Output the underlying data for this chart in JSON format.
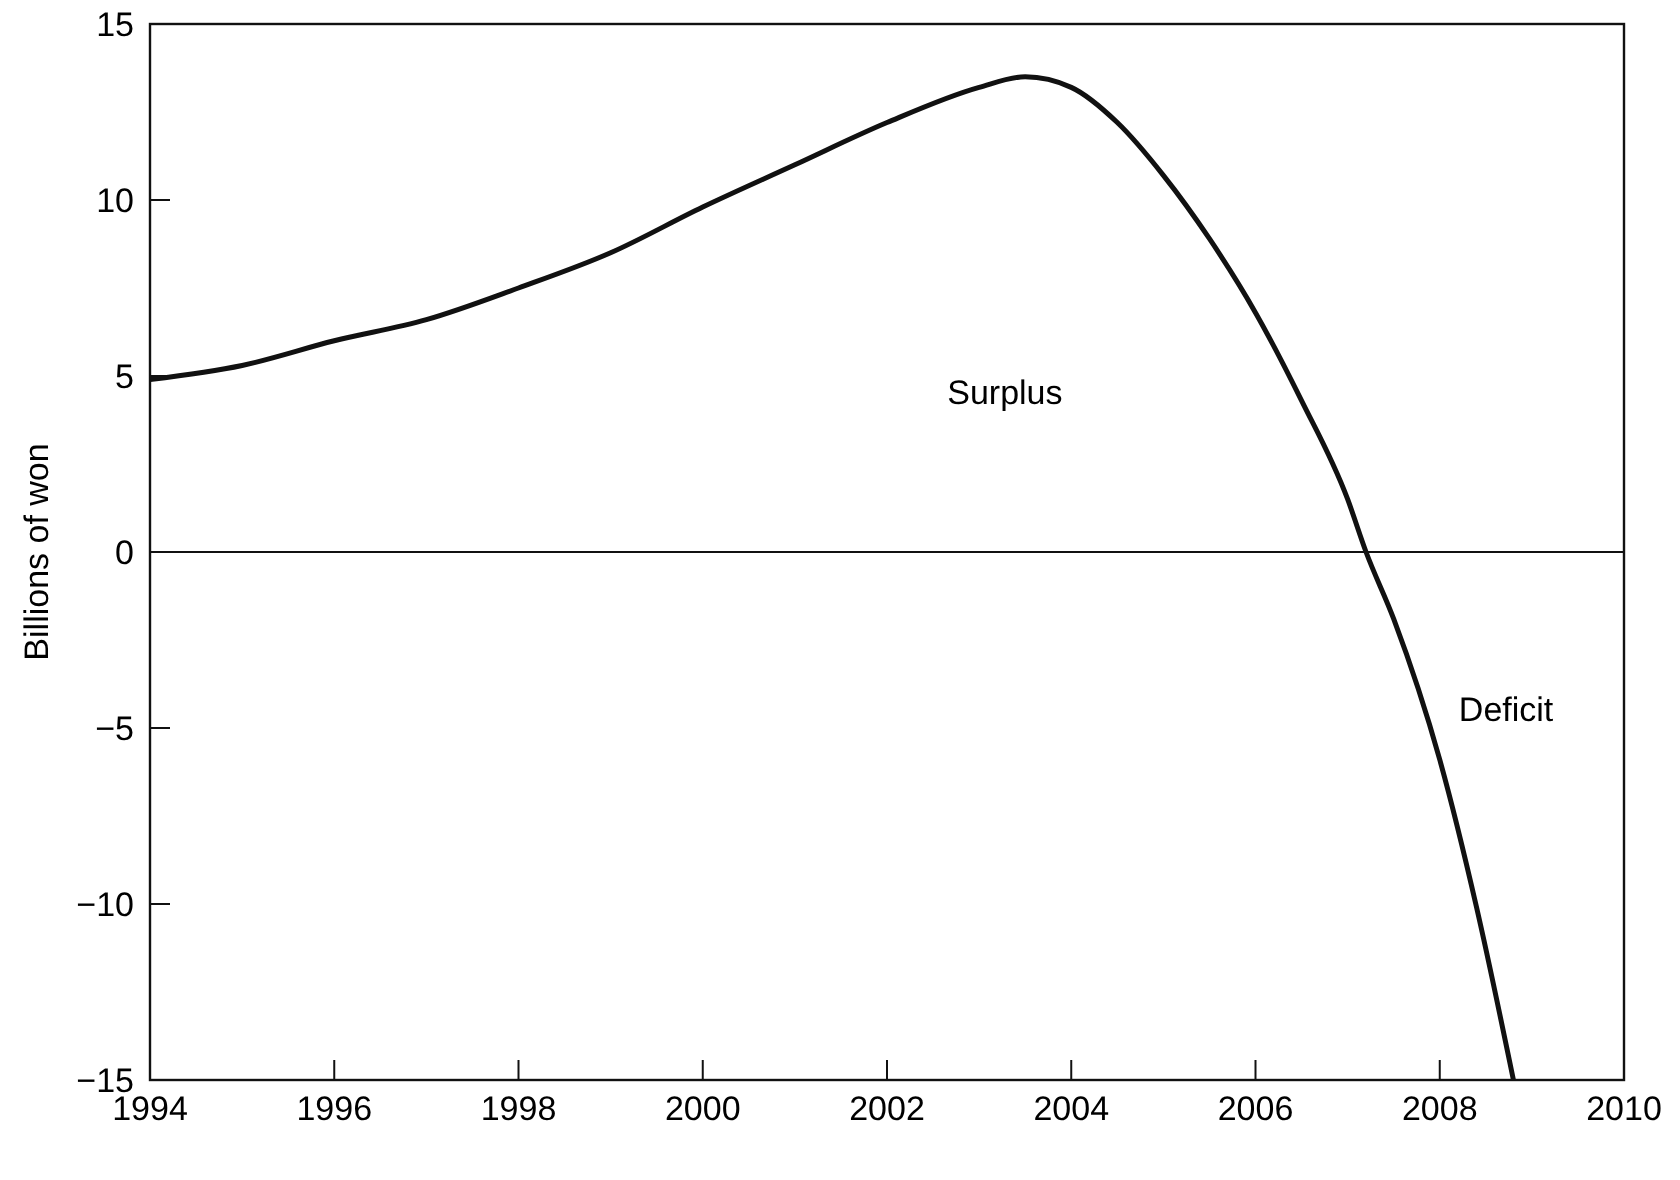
{
  "chart_data": {
    "type": "line",
    "ylabel": "Billions of won",
    "x": [
      1994,
      1995,
      1996,
      1997,
      1998,
      1999,
      2000,
      2001,
      2002,
      2003,
      2003.5,
      2004,
      2004.5,
      2005,
      2005.5,
      2006,
      2006.5,
      2007,
      2007.2,
      2007.5,
      2008,
      2008.4,
      2008.8
    ],
    "series": [
      {
        "color": "#111111",
        "values": [
          4.9,
          5.3,
          6.0,
          6.6,
          7.5,
          8.5,
          9.8,
          11.0,
          12.2,
          13.2,
          13.5,
          13.2,
          12.2,
          10.7,
          8.9,
          6.8,
          4.3,
          1.5,
          0,
          -1.9,
          -5.9,
          -10.1,
          -15
        ]
      }
    ],
    "xlim": [
      1994,
      2010
    ],
    "xticks": [
      1994,
      1996,
      1998,
      2000,
      2002,
      2004,
      2006,
      2008,
      2010
    ],
    "ylim": [
      -15,
      15
    ],
    "yticks": [
      {
        "value": -15,
        "label": "−15"
      },
      {
        "value": -10,
        "label": "−10"
      },
      {
        "value": -5,
        "label": "−5"
      },
      0,
      5,
      10,
      15
    ],
    "ref_lines": [
      {
        "axis": "y",
        "value": 0,
        "color": "#111111"
      }
    ],
    "annotations": [
      "Surplus",
      "Deficit"
    ],
    "grid": false,
    "marker": "none",
    "line_style": "solid"
  }
}
